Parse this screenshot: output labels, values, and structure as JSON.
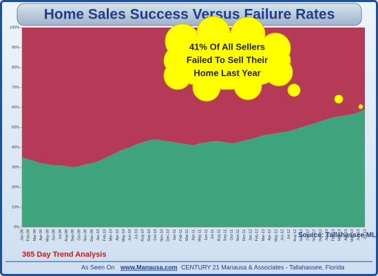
{
  "chart_data": {
    "type": "stacked_area",
    "title": "Home Sales Success Versus Failure Rates",
    "callout": [
      "41% Of All Sellers",
      "Failed To Sell Their",
      "Home Last Year"
    ],
    "subtitle": "365 Day Trend Analysis",
    "source": "Source: Tallahassee  MLS",
    "footer": [
      "As Seen On",
      "www.Manausa.com",
      "CENTURY  21 Manausa & Associates - Tallahassee, Florida"
    ],
    "categories": [
      "Jan-09",
      "Feb-09",
      "Mar-09",
      "Apr-09",
      "May-09",
      "Jun-09",
      "Jul-09",
      "Aug-09",
      "Sep-09",
      "Oct-09",
      "Nov-09",
      "Dec-09",
      "Jan-10",
      "Feb-10",
      "Mar-10",
      "Apr-10",
      "May-10",
      "Jun-10",
      "Jul-10",
      "Aug-10",
      "Sep-10",
      "Oct-10",
      "Nov-10",
      "Dec-10",
      "Jan-11",
      "Feb-11",
      "Mar-11",
      "Apr-11",
      "May-11",
      "Jun-11",
      "Jul-11",
      "Aug-11",
      "Sep-11",
      "Oct-11",
      "Nov-11",
      "Dec-11",
      "Jan-12",
      "Feb-12",
      "Mar-12",
      "Apr-12",
      "May-12",
      "Jun-12",
      "Jul-12",
      "Aug-12",
      "Sep-12",
      "Oct-12",
      "Nov-12",
      "Dec-12",
      "Jan-13",
      "Feb-13",
      "Mar-13",
      "Apr-13",
      "May-13",
      "Jun-13",
      "Jul-13"
    ],
    "series": [
      {
        "color": "#3fa37d",
        "values": [
          35,
          34,
          33,
          32,
          31.5,
          31,
          31,
          30.5,
          30,
          30.5,
          31.5,
          32,
          33,
          34.5,
          36,
          37.5,
          39,
          40,
          41.5,
          42.5,
          43.5,
          44,
          43.5,
          43,
          42.5,
          42,
          41.5,
          41,
          42,
          42.5,
          43,
          43,
          42.5,
          42,
          42.5,
          43.5,
          44,
          45,
          46,
          46.5,
          47,
          47.5,
          48,
          49,
          50,
          51,
          52,
          53,
          54,
          55,
          55.5,
          56,
          56.5,
          57.5,
          59
        ]
      },
      {
        "color": "#b53a58",
        "values": [
          65,
          66,
          67,
          68,
          68.5,
          69,
          69,
          69.5,
          70,
          69.5,
          68.5,
          68,
          67,
          65.5,
          64,
          62.5,
          61,
          60,
          58.5,
          57.5,
          56.5,
          56,
          56.5,
          57,
          57.5,
          58,
          58.5,
          59,
          58,
          57.5,
          57,
          57,
          57.5,
          58,
          57.5,
          56.5,
          56,
          55,
          54,
          53.5,
          53,
          52.5,
          52,
          51,
          50,
          49,
          48,
          47,
          46,
          45,
          44.5,
          44,
          43.5,
          42.5,
          41
        ]
      }
    ],
    "ylim": [
      0,
      100
    ],
    "yticks": [
      {
        "value": 0,
        "label": "0%"
      },
      {
        "value": 10,
        "label": "10%"
      },
      {
        "value": 20,
        "label": "20%"
      },
      {
        "value": 30,
        "label": "30%"
      },
      {
        "value": 40,
        "label": "40%"
      },
      {
        "value": 50,
        "label": "50%"
      },
      {
        "value": 60,
        "label": "60%"
      },
      {
        "value": 70,
        "label": "70%"
      },
      {
        "value": 80,
        "label": "80%"
      },
      {
        "value": 90,
        "label": "90%"
      },
      {
        "value": 100,
        "label": "100%"
      }
    ]
  }
}
